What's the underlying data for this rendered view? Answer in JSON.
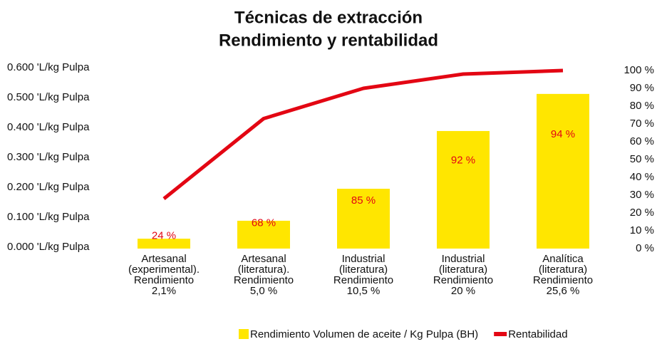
{
  "chart_data": {
    "type": "bar_line",
    "title": "Técnicas de extracción",
    "subtitle": "Rendimiento y rentabilidad",
    "categories": [
      [
        "Artesanal",
        "(experimental).",
        "Rendimiento",
        "2,1%"
      ],
      [
        "Artesanal",
        "(literatura).",
        "Rendimiento",
        "5,0 %"
      ],
      [
        "Industrial",
        "(literatura)",
        "Rendimiento",
        "10,5 %"
      ],
      [
        "Industrial",
        "(literatura)",
        "Rendimiento",
        "20 %"
      ],
      [
        "Analítica",
        "(literatura)",
        "Rendimiento",
        "25,6 %"
      ]
    ],
    "series": [
      {
        "name": "Rendimiento Volumen de aceite / Kg Pulpa (BH)",
        "color": "#ffe600",
        "kind": "bar",
        "values": [
          0.033,
          0.093,
          0.2,
          0.393,
          0.517
        ]
      },
      {
        "name": "Rentabilidad",
        "color": "#e30613",
        "kind": "line",
        "axis": "y2",
        "values": [
          28,
          73,
          90,
          98,
          100
        ]
      }
    ],
    "annotations": [
      "24 %",
      "68 %",
      "85 %",
      "92 %",
      "94 %"
    ],
    "ylim": [
      0,
      0.6
    ],
    "yticks": [
      {
        "value": 0,
        "label": "0.000 'L/kg Pulpa"
      },
      {
        "value": 0.1,
        "label": "0.100 'L/kg Pulpa"
      },
      {
        "value": 0.2,
        "label": "0.200 'L/kg Pulpa"
      },
      {
        "value": 0.3,
        "label": "0.300 'L/kg Pulpa"
      },
      {
        "value": 0.4,
        "label": "0.400 'L/kg Pulpa"
      },
      {
        "value": 0.5,
        "label": "0.500 'L/kg Pulpa"
      },
      {
        "value": 0.6,
        "label": "0.600 'L/kg Pulpa"
      }
    ],
    "y2lim": [
      0,
      100
    ],
    "y2ticks": [
      {
        "value": 0,
        "label": "0 %"
      },
      {
        "value": 10,
        "label": "10 %"
      },
      {
        "value": 20,
        "label": "20 %"
      },
      {
        "value": 30,
        "label": "30 %"
      },
      {
        "value": 40,
        "label": "40 %"
      },
      {
        "value": 50,
        "label": "50 %"
      },
      {
        "value": 60,
        "label": "60 %"
      },
      {
        "value": 70,
        "label": "70 %"
      },
      {
        "value": 80,
        "label": "80 %"
      },
      {
        "value": 90,
        "label": "90 %"
      },
      {
        "value": 100,
        "label": "100 %"
      }
    ],
    "legend": "bottom"
  }
}
